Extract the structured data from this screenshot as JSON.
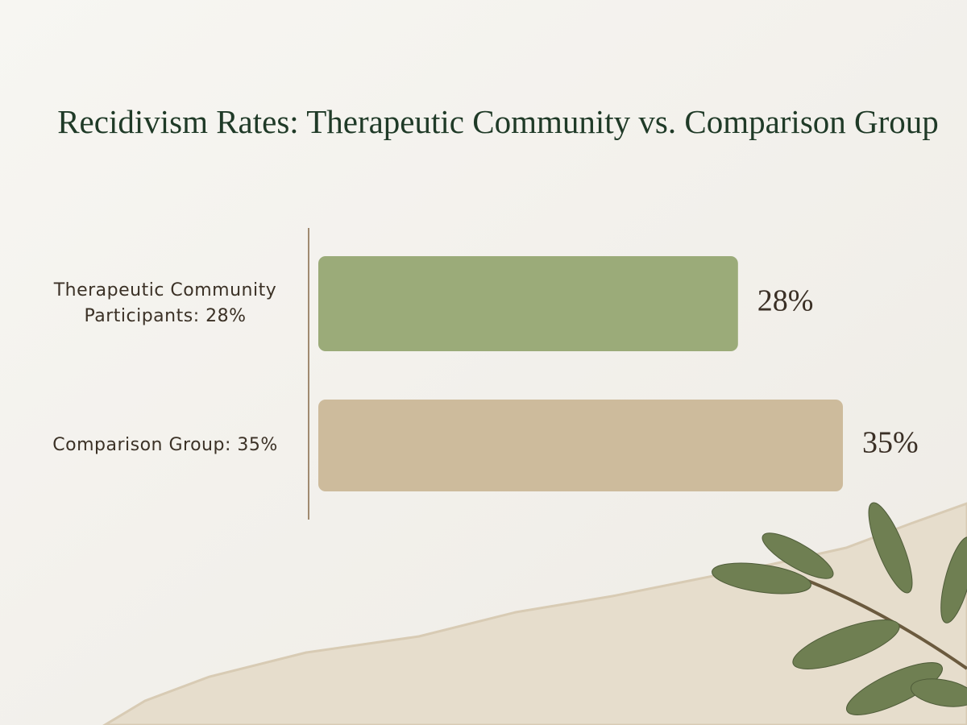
{
  "chart_data": {
    "type": "hbar",
    "title": "Recidivism Rates: Therapeutic Community vs. Comparison Group",
    "categories": [
      "Therapeutic Community Participants: 28%",
      "Comparison Group: 35%"
    ],
    "values": [
      28,
      35
    ],
    "value_labels": [
      "28%",
      "35%"
    ],
    "colors": [
      "#9bab79",
      "#cdbb9c"
    ]
  }
}
